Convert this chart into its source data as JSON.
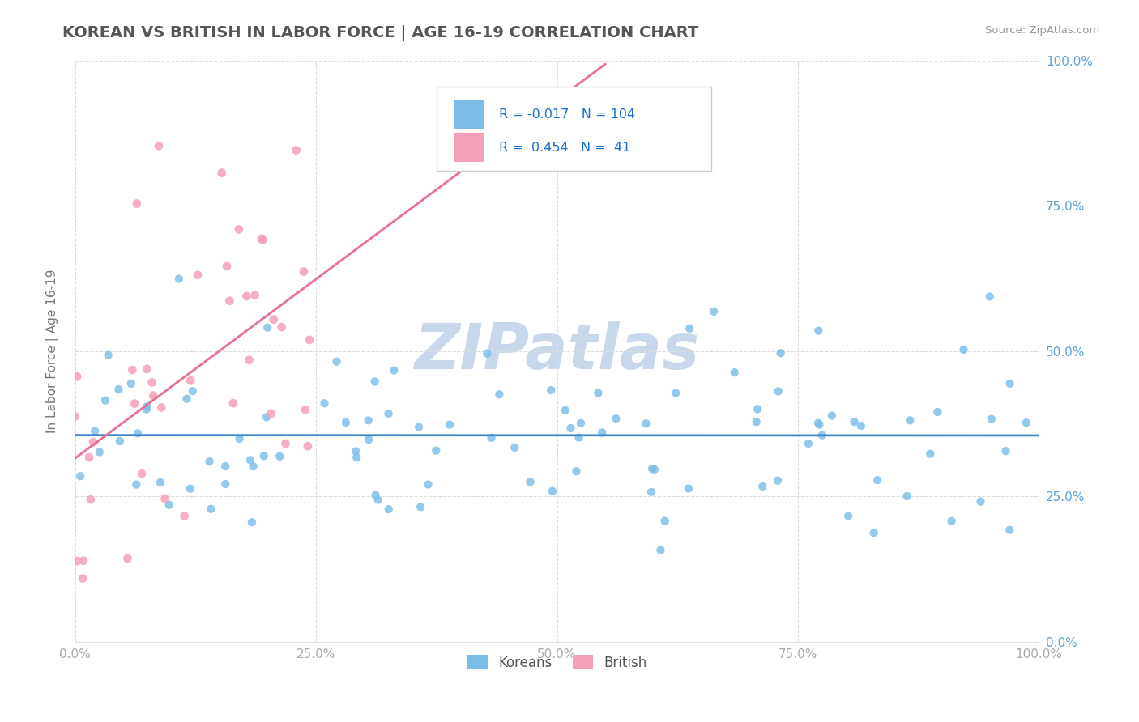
{
  "title": "KOREAN VS BRITISH IN LABOR FORCE | AGE 16-19 CORRELATION CHART",
  "ylabel": "In Labor Force | Age 16-19",
  "source": "Source: ZipAtlas.com",
  "watermark": "ZIPatlas",
  "xlim": [
    0.0,
    1.0
  ],
  "ylim": [
    0.0,
    1.0
  ],
  "xticks": [
    0.0,
    0.25,
    0.5,
    0.75,
    1.0
  ],
  "yticks": [
    0.0,
    0.25,
    0.5,
    0.75,
    1.0
  ],
  "xticklabels": [
    "0.0%",
    "25.0%",
    "50.0%",
    "75.0%",
    "100.0%"
  ],
  "yticklabels": [
    "0.0%",
    "25.0%",
    "50.0%",
    "75.0%",
    "100.0%"
  ],
  "legend_labels": [
    "Koreans",
    "British"
  ],
  "korean_color": "#7bbce8",
  "british_color": "#f4a0b8",
  "korean_R": -0.017,
  "korean_N": 104,
  "british_R": 0.454,
  "british_N": 41,
  "title_color": "#555555",
  "source_color": "#999999",
  "watermark_color": "#c8d8ea",
  "tick_color_right": "#5ba3d9",
  "tick_color_bottom": "#aaaaaa",
  "grid_color": "#dddddd",
  "korean_line_color": "#4488cc",
  "british_line_color": "#e87090"
}
